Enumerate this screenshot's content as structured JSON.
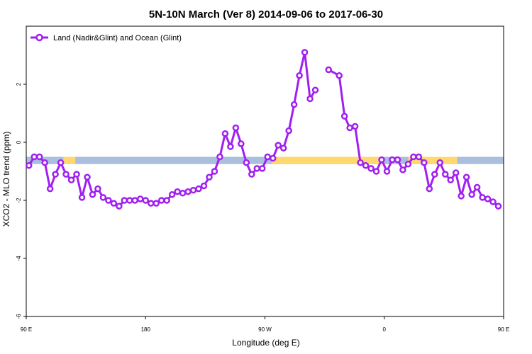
{
  "chart_data": {
    "type": "line",
    "title": "5N-10N March (Ver 8)   2014-09-06 to 2017-06-30",
    "xlabel": "Longitude (deg E)",
    "ylabel": "XCO2 - MLO trend (ppm)",
    "xlim": [
      90,
      450
    ],
    "ylim": [
      -6,
      4
    ],
    "x_ticks": [
      {
        "value": 90,
        "label": "90 E"
      },
      {
        "value": 180,
        "label": "180"
      },
      {
        "value": 270,
        "label": "90 W"
      },
      {
        "value": 360,
        "label": "0"
      },
      {
        "value": 450,
        "label": "90 E"
      },
      {
        "value": 540,
        "label": "180"
      }
    ],
    "y_ticks": [
      {
        "value": -6,
        "label": "-6"
      },
      {
        "value": -4,
        "label": "-4"
      },
      {
        "value": -2,
        "label": "-2"
      },
      {
        "value": 0,
        "label": "0"
      },
      {
        "value": 2,
        "label": "2"
      }
    ],
    "legend": {
      "position": "top-left",
      "label": "Land (Nadir&Glint) and Ocean (Glint)"
    },
    "colors": {
      "series": "#a020f0",
      "ocean": "#a9bfdd",
      "land": "#ffd870"
    },
    "surface_band": {
      "y_range": [
        -0.75,
        -0.5
      ],
      "land_segments": [
        [
          118,
          127
        ],
        [
          275,
          360
        ],
        [
          378,
          415
        ],
        [
          457,
          483
        ],
        [
          492,
          505
        ]
      ]
    },
    "series": [
      {
        "name": "Land (Nadir&Glint) and Ocean (Glint)",
        "points": [
          [
            92,
            -0.8
          ],
          [
            96,
            -0.5
          ],
          [
            100,
            -0.5
          ],
          [
            104,
            -0.7
          ],
          [
            108,
            -1.6
          ],
          [
            112,
            -1.1
          ],
          [
            116,
            -0.7
          ],
          [
            120,
            -1.1
          ],
          [
            124,
            -1.3
          ],
          [
            128,
            -1.1
          ],
          [
            132,
            -1.9
          ],
          [
            136,
            -1.2
          ],
          [
            140,
            -1.8
          ],
          [
            144,
            -1.6
          ],
          [
            148,
            -1.9
          ],
          [
            152,
            -2.0
          ],
          [
            156,
            -2.1
          ],
          [
            160,
            -2.2
          ],
          [
            164,
            -2.0
          ],
          [
            168,
            -2.0
          ],
          [
            172,
            -2.0
          ],
          [
            176,
            -1.95
          ],
          [
            180,
            -2.0
          ],
          [
            184,
            -2.1
          ],
          [
            188,
            -2.1
          ],
          [
            192,
            -2.0
          ],
          [
            196,
            -2.0
          ],
          [
            200,
            -1.8
          ],
          [
            204,
            -1.7
          ],
          [
            208,
            -1.75
          ],
          [
            212,
            -1.7
          ],
          [
            216,
            -1.65
          ],
          [
            220,
            -1.6
          ],
          [
            224,
            -1.5
          ],
          [
            228,
            -1.2
          ],
          [
            232,
            -1.0
          ],
          [
            236,
            -0.5
          ],
          [
            240,
            0.3
          ],
          [
            244,
            -0.15
          ],
          [
            248,
            0.5
          ],
          [
            252,
            -0.05
          ],
          [
            256,
            -0.7
          ],
          [
            260,
            -1.1
          ],
          [
            264,
            -0.9
          ],
          [
            268,
            -0.9
          ],
          [
            272,
            -0.5
          ],
          [
            276,
            -0.55
          ],
          [
            280,
            -0.1
          ],
          [
            284,
            -0.2
          ],
          [
            288,
            0.4
          ],
          [
            292,
            1.3
          ],
          [
            296,
            2.3
          ],
          [
            300,
            3.1
          ],
          [
            304,
            1.5
          ],
          [
            308,
            1.8
          ],
          [
            null,
            null
          ],
          [
            318,
            2.5
          ],
          [
            326,
            2.3
          ],
          [
            330,
            0.9
          ],
          [
            334,
            0.5
          ],
          [
            338,
            0.55
          ],
          [
            342,
            -0.7
          ],
          [
            346,
            -0.8
          ],
          [
            350,
            -0.9
          ],
          [
            354,
            -1.0
          ],
          [
            358,
            -0.6
          ],
          [
            362,
            -1.0
          ],
          [
            366,
            -0.6
          ],
          [
            370,
            -0.6
          ],
          [
            374,
            -0.95
          ],
          [
            378,
            -0.75
          ],
          [
            382,
            -0.5
          ],
          [
            386,
            -0.5
          ],
          [
            390,
            -0.7
          ],
          [
            394,
            -1.6
          ],
          [
            398,
            -1.1
          ],
          [
            402,
            -0.7
          ],
          [
            406,
            -1.1
          ],
          [
            410,
            -1.3
          ],
          [
            414,
            -1.05
          ],
          [
            418,
            -1.85
          ],
          [
            422,
            -1.2
          ],
          [
            426,
            -1.8
          ],
          [
            430,
            -1.55
          ],
          [
            434,
            -1.9
          ],
          [
            438,
            -1.95
          ],
          [
            442,
            -2.05
          ],
          [
            446,
            -2.2
          ]
        ]
      }
    ]
  }
}
